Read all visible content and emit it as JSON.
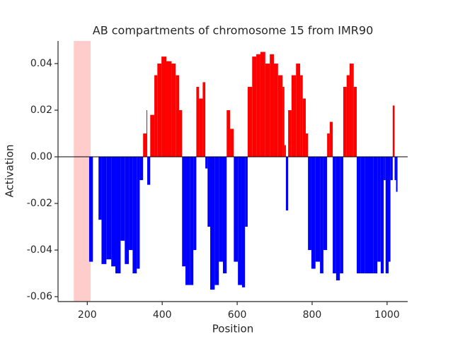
{
  "chart_data": {
    "type": "area",
    "title": "AB compartments of chromosome 15 from IMR90",
    "x_label": "Position",
    "y_label": "Activation",
    "x": [
      205,
      215,
      230,
      238,
      251,
      264,
      275,
      289,
      300,
      311,
      321,
      332,
      340,
      349,
      358,
      360,
      368,
      379,
      387,
      398,
      411,
      425,
      436,
      445,
      453,
      462,
      474,
      483,
      491,
      498,
      508,
      515,
      521,
      528,
      540,
      551,
      562,
      572,
      581,
      591,
      602,
      613,
      621,
      628,
      640,
      651,
      662,
      675,
      687,
      698,
      709,
      721,
      726,
      730,
      736,
      745,
      757,
      768,
      775,
      783,
      789,
      798,
      809,
      821,
      830,
      840,
      847,
      855,
      864,
      874,
      883,
      892,
      900,
      906,
      911,
      919,
      930,
      941,
      953,
      964,
      974,
      983,
      991,
      996,
      1004,
      1009,
      1015,
      1020,
      1024
    ],
    "values": [
      -0.045,
      null,
      -0.027,
      -0.046,
      -0.044,
      -0.047,
      -0.05,
      -0.036,
      -0.046,
      -0.04,
      -0.05,
      -0.048,
      -0.01,
      0.01,
      0.02,
      -0.012,
      0.018,
      0.035,
      0.04,
      0.043,
      0.041,
      0.04,
      0.035,
      0.02,
      -0.047,
      -0.055,
      -0.055,
      -0.04,
      0.03,
      0.025,
      0.032,
      -0.005,
      -0.03,
      -0.057,
      -0.055,
      -0.045,
      -0.05,
      0.02,
      0.012,
      -0.045,
      -0.055,
      -0.056,
      -0.03,
      0.03,
      0.043,
      0.044,
      0.045,
      0.04,
      0.044,
      0.04,
      0.035,
      0.03,
      0.005,
      -0.023,
      0.02,
      0.035,
      0.04,
      0.035,
      0.025,
      0.01,
      -0.04,
      -0.048,
      -0.045,
      -0.05,
      -0.04,
      0.01,
      0.015,
      -0.05,
      -0.053,
      -0.05,
      0.03,
      0.035,
      0.04,
      0.04,
      0.03,
      -0.05,
      -0.05,
      -0.05,
      -0.05,
      -0.05,
      -0.045,
      -0.05,
      -0.01,
      -0.05,
      -0.045,
      -0.01,
      0.022,
      -0.01,
      -0.015
    ],
    "positive_color": "#ff0000",
    "negative_color": "#0000ff",
    "highlight": {
      "start": 164,
      "end": 209,
      "color": "#ffcccc"
    },
    "xlim": [
      122,
      1055
    ],
    "ylim": [
      -0.0621,
      0.0497
    ],
    "xticks": [
      200,
      400,
      600,
      800,
      1000
    ],
    "yticks": [
      -0.06,
      -0.04,
      -0.02,
      {
        "value": 0,
        "label": "0.00"
      },
      0.02,
      0.04
    ],
    "grid": false
  }
}
